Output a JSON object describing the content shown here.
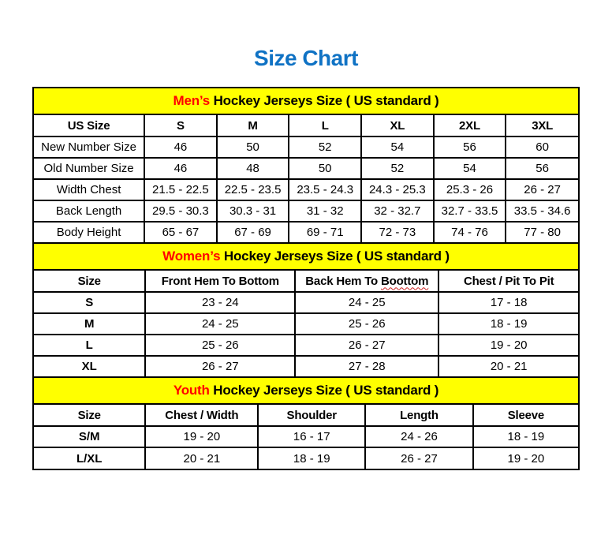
{
  "page": {
    "title": "Size Chart"
  },
  "colors": {
    "title_blue": "#0F72C4",
    "section_background_yellow": "#FFFF00",
    "section_highlight_red": "#FF0000",
    "table_border_black": "#000000",
    "body_text_black": "#000000",
    "misspelling_wavy_underline": "#CC2222",
    "page_background": "#FFFFFF"
  },
  "men": {
    "title_highlight": "Men’s",
    "title_rest": "Hockey Jerseys Size ( US standard )",
    "columns": [
      "US Size",
      "S",
      "M",
      "L",
      "XL",
      "2XL",
      "3XL"
    ],
    "rows": [
      [
        "New Number Size",
        "46",
        "50",
        "52",
        "54",
        "56",
        "60"
      ],
      [
        "Old Number Size",
        "46",
        "48",
        "50",
        "52",
        "54",
        "56"
      ],
      [
        "Width Chest",
        "21.5 - 22.5",
        "22.5 - 23.5",
        "23.5 - 24.3",
        "24.3 - 25.3",
        "25.3 - 26",
        "26 - 27"
      ],
      [
        "Back Length",
        "29.5 - 30.3",
        "30.3 - 31",
        "31 - 32",
        "32 - 32.7",
        "32.7 - 33.5",
        "33.5 - 34.6"
      ],
      [
        "Body Height",
        "65 - 67",
        "67 - 69",
        "69 - 71",
        "72 - 73",
        "74 - 76",
        "77 - 80"
      ]
    ]
  },
  "women": {
    "title_highlight": "Women’s",
    "title_rest": "Hockey Jerseys Size ( US standard )",
    "header": {
      "size": "Size",
      "front": "Front Hem To Bottom",
      "back_prefix": "Back Hem To",
      "back_misspelled": "Boottom",
      "chest": "Chest / Pit To Pit"
    },
    "rows": [
      [
        "S",
        "23 - 24",
        "24 - 25",
        "17 - 18"
      ],
      [
        "M",
        "24 - 25",
        "25 - 26",
        "18 - 19"
      ],
      [
        "L",
        "25 - 26",
        "26 - 27",
        "19 - 20"
      ],
      [
        "XL",
        "26 - 27",
        "27 - 28",
        "20 - 21"
      ]
    ]
  },
  "youth": {
    "title_highlight": "Youth",
    "title_rest": "Hockey Jerseys Size ( US standard )",
    "columns": [
      "Size",
      "Chest / Width",
      "Shoulder",
      "Length",
      "Sleeve"
    ],
    "rows": [
      [
        "S/M",
        "19 - 20",
        "16 - 17",
        "24 - 26",
        "18 - 19"
      ],
      [
        "L/XL",
        "20 - 21",
        "18 - 19",
        "26 - 27",
        "19 - 20"
      ]
    ]
  }
}
